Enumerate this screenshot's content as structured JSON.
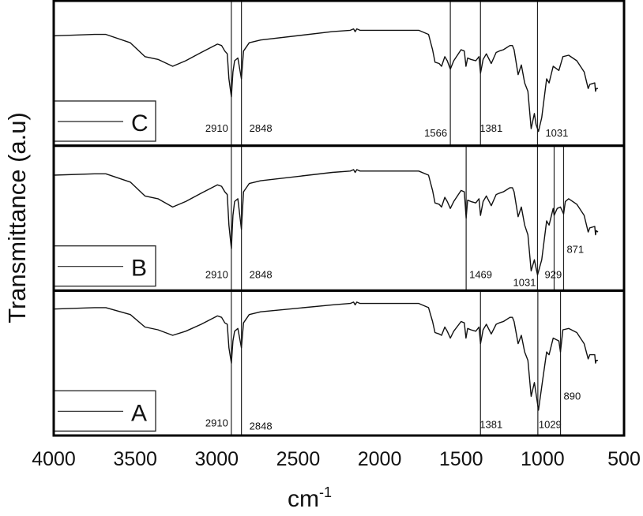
{
  "chart_data": {
    "type": "line",
    "layout": "three stacked panels sharing x axis",
    "xlabel": "cm",
    "xlabel_superscript": "-1",
    "ylabel": "Transmittance (a.u)",
    "xlim": [
      4000,
      500
    ],
    "x_reversed": true,
    "x_ticks": [
      "4000",
      "3500",
      "3000",
      "2500",
      "2000",
      "1500",
      "1000",
      "500"
    ],
    "y_ticks": [],
    "grid": false,
    "colors": {
      "line": "#111111",
      "frame": "#000000"
    },
    "panels": [
      {
        "name": "C",
        "legend": "C",
        "legend_position": "bottom-left",
        "markers": [
          2910,
          2848,
          1566,
          1381,
          1031
        ],
        "marker_labels": [
          "2910",
          "2848",
          "1566",
          "1381",
          "1031"
        ],
        "points": [
          [
            4000,
            77
          ],
          [
            3750,
            78
          ],
          [
            3680,
            78
          ],
          [
            3530,
            72
          ],
          [
            3440,
            62
          ],
          [
            3360,
            60
          ],
          [
            3270,
            55
          ],
          [
            3190,
            59
          ],
          [
            3095,
            65
          ],
          [
            2995,
            71
          ],
          [
            2970,
            70
          ],
          [
            2950,
            66
          ],
          [
            2935,
            64
          ],
          [
            2925,
            46
          ],
          [
            2910,
            33
          ],
          [
            2900,
            51
          ],
          [
            2890,
            59
          ],
          [
            2870,
            61
          ],
          [
            2848,
            46
          ],
          [
            2835,
            66
          ],
          [
            2800,
            72
          ],
          [
            2730,
            74
          ],
          [
            2290,
            80
          ],
          [
            2180,
            81
          ],
          [
            2160,
            82
          ],
          [
            2150,
            80
          ],
          [
            2140,
            82
          ],
          [
            2120,
            81
          ],
          [
            1760,
            81
          ],
          [
            1700,
            78
          ],
          [
            1675,
            67
          ],
          [
            1660,
            58
          ],
          [
            1635,
            57
          ],
          [
            1620,
            55
          ],
          [
            1600,
            62
          ],
          [
            1585,
            59
          ],
          [
            1566,
            53
          ],
          [
            1545,
            59
          ],
          [
            1500,
            67
          ],
          [
            1480,
            66
          ],
          [
            1470,
            55
          ],
          [
            1460,
            61
          ],
          [
            1440,
            60
          ],
          [
            1410,
            59
          ],
          [
            1390,
            62
          ],
          [
            1381,
            50
          ],
          [
            1365,
            60
          ],
          [
            1345,
            64
          ],
          [
            1315,
            57
          ],
          [
            1285,
            65
          ],
          [
            1266,
            66
          ],
          [
            1240,
            67
          ],
          [
            1200,
            70
          ],
          [
            1185,
            70
          ],
          [
            1175,
            67
          ],
          [
            1150,
            49
          ],
          [
            1130,
            56
          ],
          [
            1110,
            43
          ],
          [
            1090,
            37
          ],
          [
            1070,
            10
          ],
          [
            1050,
            21
          ],
          [
            1040,
            13
          ],
          [
            1025,
            8
          ],
          [
            1005,
            18
          ],
          [
            975,
            46
          ],
          [
            960,
            43
          ],
          [
            935,
            55
          ],
          [
            900,
            52
          ],
          [
            875,
            62
          ],
          [
            840,
            63
          ],
          [
            790,
            59
          ],
          [
            745,
            51
          ],
          [
            720,
            39
          ],
          [
            710,
            42
          ],
          [
            680,
            43
          ],
          [
            675,
            37
          ],
          [
            670,
            39
          ],
          [
            660,
            39
          ]
        ]
      },
      {
        "name": "B",
        "legend": "B",
        "legend_position": "bottom-left",
        "markers": [
          2910,
          2848,
          1469,
          1031,
          929,
          871
        ],
        "marker_labels": [
          "2910",
          "2848",
          "1469",
          "1031",
          "929",
          "871"
        ],
        "points": [
          [
            4000,
            81
          ],
          [
            3750,
            82
          ],
          [
            3680,
            82
          ],
          [
            3530,
            76
          ],
          [
            3440,
            66
          ],
          [
            3360,
            64
          ],
          [
            3270,
            58
          ],
          [
            3190,
            62
          ],
          [
            3095,
            68
          ],
          [
            2995,
            74
          ],
          [
            2970,
            73
          ],
          [
            2950,
            69
          ],
          [
            2935,
            67
          ],
          [
            2925,
            45
          ],
          [
            2910,
            28
          ],
          [
            2900,
            52
          ],
          [
            2890,
            62
          ],
          [
            2870,
            64
          ],
          [
            2848,
            42
          ],
          [
            2835,
            69
          ],
          [
            2800,
            75
          ],
          [
            2730,
            77
          ],
          [
            2290,
            83
          ],
          [
            2180,
            84
          ],
          [
            2160,
            85
          ],
          [
            2150,
            83
          ],
          [
            2140,
            85
          ],
          [
            2120,
            84
          ],
          [
            1760,
            84
          ],
          [
            1700,
            81
          ],
          [
            1675,
            70
          ],
          [
            1660,
            61
          ],
          [
            1635,
            60
          ],
          [
            1620,
            58
          ],
          [
            1600,
            65
          ],
          [
            1585,
            62
          ],
          [
            1566,
            57
          ],
          [
            1545,
            62
          ],
          [
            1500,
            70
          ],
          [
            1480,
            69
          ],
          [
            1469,
            50
          ],
          [
            1460,
            63
          ],
          [
            1440,
            62
          ],
          [
            1410,
            61
          ],
          [
            1390,
            64
          ],
          [
            1381,
            52
          ],
          [
            1365,
            62
          ],
          [
            1345,
            66
          ],
          [
            1315,
            59
          ],
          [
            1285,
            67
          ],
          [
            1266,
            68
          ],
          [
            1240,
            69
          ],
          [
            1200,
            72
          ],
          [
            1185,
            72
          ],
          [
            1175,
            69
          ],
          [
            1150,
            51
          ],
          [
            1130,
            58
          ],
          [
            1110,
            45
          ],
          [
            1090,
            38
          ],
          [
            1070,
            12
          ],
          [
            1050,
            20
          ],
          [
            1040,
            14
          ],
          [
            1031,
            9
          ],
          [
            1005,
            20
          ],
          [
            975,
            48
          ],
          [
            960,
            45
          ],
          [
            935,
            57
          ],
          [
            929,
            52
          ],
          [
            910,
            57
          ],
          [
            890,
            58
          ],
          [
            871,
            53
          ],
          [
            860,
            62
          ],
          [
            840,
            64
          ],
          [
            790,
            60
          ],
          [
            745,
            52
          ],
          [
            720,
            40
          ],
          [
            710,
            43
          ],
          [
            680,
            44
          ],
          [
            675,
            38
          ],
          [
            670,
            41
          ],
          [
            660,
            40
          ]
        ]
      },
      {
        "name": "A",
        "legend": "A",
        "legend_position": "bottom-left",
        "markers": [
          2910,
          2848,
          1381,
          1029,
          890
        ],
        "marker_labels": [
          "2910",
          "2848",
          "1381",
          "1029",
          "890"
        ],
        "points": [
          [
            4000,
            89
          ],
          [
            3750,
            90
          ],
          [
            3680,
            90
          ],
          [
            3530,
            85
          ],
          [
            3440,
            76
          ],
          [
            3360,
            74
          ],
          [
            3270,
            70
          ],
          [
            3190,
            73
          ],
          [
            3095,
            78
          ],
          [
            2995,
            84
          ],
          [
            2970,
            83
          ],
          [
            2950,
            79
          ],
          [
            2935,
            78
          ],
          [
            2925,
            61
          ],
          [
            2910,
            50
          ],
          [
            2900,
            66
          ],
          [
            2890,
            73
          ],
          [
            2870,
            75
          ],
          [
            2848,
            61
          ],
          [
            2835,
            79
          ],
          [
            2800,
            85
          ],
          [
            2730,
            87
          ],
          [
            2290,
            92
          ],
          [
            2180,
            93
          ],
          [
            2160,
            94
          ],
          [
            2150,
            92
          ],
          [
            2140,
            94
          ],
          [
            2120,
            93
          ],
          [
            1760,
            93
          ],
          [
            1700,
            90
          ],
          [
            1675,
            80
          ],
          [
            1660,
            72
          ],
          [
            1635,
            71
          ],
          [
            1620,
            70
          ],
          [
            1600,
            76
          ],
          [
            1585,
            73
          ],
          [
            1566,
            68
          ],
          [
            1545,
            73
          ],
          [
            1500,
            80
          ],
          [
            1480,
            79
          ],
          [
            1470,
            68
          ],
          [
            1460,
            75
          ],
          [
            1440,
            74
          ],
          [
            1410,
            73
          ],
          [
            1390,
            76
          ],
          [
            1381,
            64
          ],
          [
            1365,
            74
          ],
          [
            1345,
            78
          ],
          [
            1315,
            71
          ],
          [
            1285,
            78
          ],
          [
            1266,
            79
          ],
          [
            1240,
            80
          ],
          [
            1200,
            83
          ],
          [
            1185,
            83
          ],
          [
            1175,
            80
          ],
          [
            1150,
            64
          ],
          [
            1130,
            70
          ],
          [
            1110,
            58
          ],
          [
            1090,
            52
          ],
          [
            1070,
            26
          ],
          [
            1050,
            36
          ],
          [
            1040,
            28
          ],
          [
            1025,
            16
          ],
          [
            1005,
            33
          ],
          [
            975,
            58
          ],
          [
            960,
            56
          ],
          [
            935,
            68
          ],
          [
            900,
            66
          ],
          [
            890,
            58
          ],
          [
            875,
            74
          ],
          [
            840,
            75
          ],
          [
            790,
            72
          ],
          [
            745,
            64
          ],
          [
            720,
            53
          ],
          [
            710,
            56
          ],
          [
            680,
            56
          ],
          [
            675,
            50
          ],
          [
            670,
            52
          ],
          [
            660,
            52
          ]
        ]
      }
    ]
  }
}
